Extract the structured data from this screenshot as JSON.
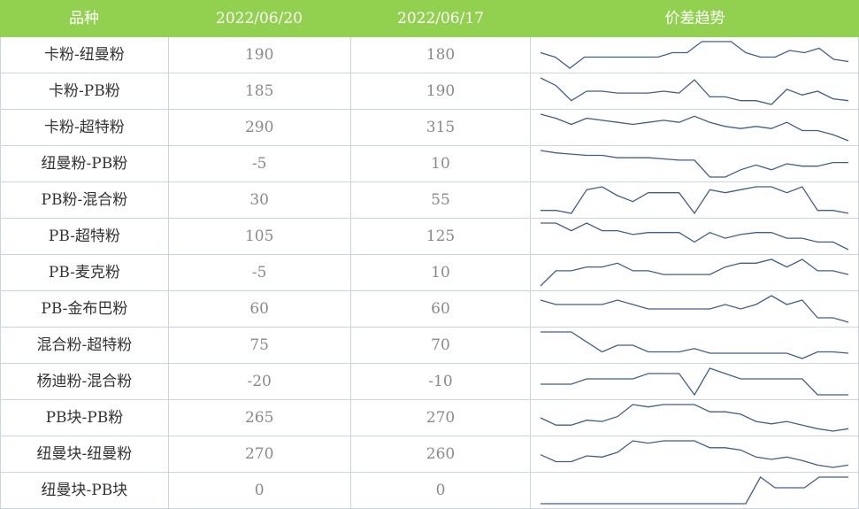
{
  "header": {
    "col_variety": "品种",
    "col_date1": "2022/06/20",
    "col_date2": "2022/06/17",
    "col_trend": "价差趋势"
  },
  "chart_data": {
    "type": "table",
    "columns": [
      "品种",
      "2022/06/20",
      "2022/06/17",
      "价差趋势"
    ],
    "rows": [
      {
        "name": "卡粉-纽曼粉",
        "v1": "190",
        "v2": "180",
        "trend": [
          62,
          60,
          55,
          60,
          60,
          60,
          60,
          60,
          60,
          62,
          62,
          67,
          67,
          67,
          62,
          60,
          60,
          63,
          62,
          64,
          59,
          58
        ]
      },
      {
        "name": "卡粉-PB粉",
        "v1": "185",
        "v2": "190",
        "trend": [
          80,
          76,
          68,
          73,
          73,
          72,
          72,
          72,
          73,
          72,
          79,
          70,
          70,
          68,
          68,
          66,
          74,
          71,
          73,
          69,
          68
        ]
      },
      {
        "name": "卡粉-超特粉",
        "v1": "290",
        "v2": "315",
        "trend": [
          96,
          94,
          91,
          94,
          93,
          92,
          91,
          92,
          93,
          92,
          95,
          92,
          90,
          89,
          90,
          89,
          92,
          88,
          88,
          86,
          83
        ]
      },
      {
        "name": "纽曼粉-PB粉",
        "v1": "-5",
        "v2": "10",
        "trend": [
          19,
          17,
          16,
          15,
          15,
          13,
          13,
          13,
          12,
          11,
          11,
          -3,
          -3,
          3,
          7,
          3,
          8,
          6,
          6,
          9,
          9
        ]
      },
      {
        "name": "PB粉-混合粉",
        "v1": "30",
        "v2": "55",
        "trend": [
          40,
          40,
          35,
          75,
          80,
          65,
          55,
          70,
          70,
          70,
          35,
          75,
          70,
          75,
          80,
          80,
          70,
          80,
          40,
          40,
          35
        ]
      },
      {
        "name": "PB-超特粉",
        "v1": "105",
        "v2": "125",
        "trend": [
          143,
          143,
          139,
          143,
          139,
          139,
          137,
          138,
          138,
          138,
          133,
          138,
          135,
          137,
          138,
          138,
          135,
          135,
          133,
          133,
          129
        ]
      },
      {
        "name": "PB-麦克粉",
        "v1": "-5",
        "v2": "10",
        "trend": [
          -30,
          -10,
          -10,
          -5,
          -5,
          0,
          -10,
          -10,
          -15,
          -15,
          -15,
          -15,
          -5,
          0,
          0,
          5,
          -5,
          5,
          -10,
          -10,
          -15
        ]
      },
      {
        "name": "PB-金布巴粉",
        "v1": "60",
        "v2": "60",
        "trend": [
          90,
          85,
          85,
          85,
          85,
          90,
          85,
          80,
          80,
          80,
          80,
          80,
          85,
          80,
          85,
          95,
          85,
          90,
          70,
          70,
          65
        ]
      },
      {
        "name": "混合粉-超特粉",
        "v1": "75",
        "v2": "70",
        "trend": [
          110,
          110,
          110,
          95,
          80,
          90,
          90,
          80,
          80,
          80,
          85,
          78,
          78,
          78,
          78,
          78,
          78,
          70,
          80,
          80,
          78
        ]
      },
      {
        "name": "杨迪粉-混合粉",
        "v1": "-20",
        "v2": "-10",
        "trend": [
          -10,
          -10,
          -10,
          -5,
          -5,
          -5,
          -5,
          0,
          0,
          0,
          -20,
          5,
          0,
          -5,
          -5,
          -5,
          -5,
          -5,
          -20,
          -20,
          -20
        ]
      },
      {
        "name": "PB块-PB粉",
        "v1": "265",
        "v2": "270",
        "trend": [
          282,
          276,
          276,
          280,
          279,
          283,
          293,
          291,
          293,
          293,
          293,
          287,
          287,
          285,
          279,
          277,
          279,
          276,
          273,
          271,
          273
        ]
      },
      {
        "name": "纽曼块-纽曼粉",
        "v1": "270",
        "v2": "260",
        "trend": [
          276,
          270,
          270,
          275,
          274,
          278,
          288,
          286,
          288,
          288,
          288,
          282,
          282,
          280,
          274,
          272,
          274,
          271,
          267,
          265,
          267
        ]
      },
      {
        "name": "纽曼块-PB块",
        "v1": "0",
        "v2": "0",
        "trend": [
          -20,
          -20,
          -20,
          -20,
          -20,
          -20,
          -20,
          -20,
          -20,
          -20,
          -20,
          -20,
          -20,
          -20,
          -20,
          5,
          -5,
          -5,
          -5,
          5,
          5,
          5
        ]
      }
    ]
  }
}
